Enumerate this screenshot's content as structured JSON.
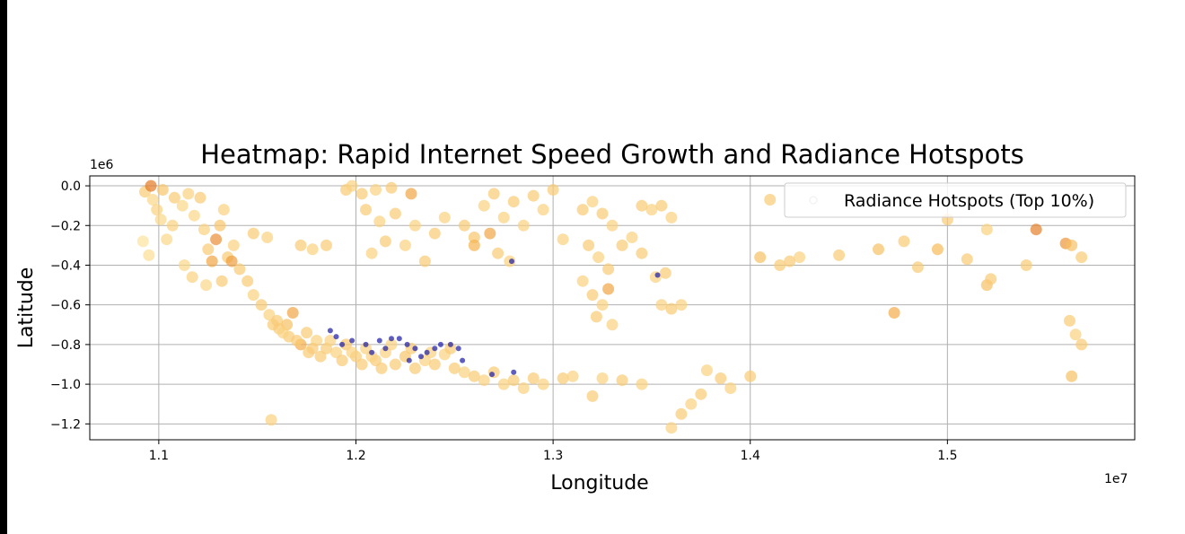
{
  "chart_data": {
    "type": "scatter",
    "title": "Heatmap: Rapid Internet Speed Growth and Radiance Hotspots",
    "xlabel": "Longitude",
    "ylabel": "Latitude",
    "x_offset_label": "1e7",
    "y_offset_label": "1e6",
    "xlim": [
      1.065,
      1.595
    ],
    "ylim": [
      -1.28,
      0.05
    ],
    "xticks": [
      1.1,
      1.2,
      1.3,
      1.4,
      1.5
    ],
    "xtick_labels": [
      "1.1",
      "1.2",
      "1.3",
      "1.4",
      "1.5"
    ],
    "yticks": [
      0.0,
      -0.2,
      -0.4,
      -0.6,
      -0.8,
      -1.0,
      -1.2
    ],
    "ytick_labels": [
      "0.0",
      "−0.2",
      "−0.4",
      "−0.6",
      "−0.8",
      "−1.0",
      "−1.2"
    ],
    "grid": true,
    "legend": {
      "position": "upper right",
      "entries": [
        "Radiance Hotspots (Top 10%)"
      ]
    },
    "colors": {
      "low": "#ffeeb0",
      "mid": "#f5b44e",
      "high": "#e06a1a",
      "hotspot": "#1a1aa6"
    },
    "series": [
      {
        "role": "speed-growth",
        "points": [
          [
            1.093,
            -0.03,
            0.3
          ],
          [
            1.097,
            -0.07,
            0.2
          ],
          [
            1.099,
            -0.12,
            0.25
          ],
          [
            1.102,
            -0.02,
            0.35
          ],
          [
            1.096,
            0.0,
            0.9
          ],
          [
            1.101,
            -0.17,
            0.2
          ],
          [
            1.104,
            -0.27,
            0.2
          ],
          [
            1.092,
            -0.28,
            0.1
          ],
          [
            1.095,
            -0.35,
            0.15
          ],
          [
            1.107,
            -0.2,
            0.25
          ],
          [
            1.108,
            -0.06,
            0.3
          ],
          [
            1.112,
            -0.1,
            0.2
          ],
          [
            1.115,
            -0.04,
            0.25
          ],
          [
            1.118,
            -0.15,
            0.2
          ],
          [
            1.121,
            -0.06,
            0.3
          ],
          [
            1.123,
            -0.22,
            0.25
          ],
          [
            1.125,
            -0.32,
            0.3
          ],
          [
            1.129,
            -0.27,
            0.75
          ],
          [
            1.131,
            -0.2,
            0.35
          ],
          [
            1.133,
            -0.12,
            0.25
          ],
          [
            1.127,
            -0.38,
            0.6
          ],
          [
            1.135,
            -0.36,
            0.3
          ],
          [
            1.138,
            -0.3,
            0.25
          ],
          [
            1.141,
            -0.42,
            0.3
          ],
          [
            1.113,
            -0.4,
            0.2
          ],
          [
            1.117,
            -0.46,
            0.25
          ],
          [
            1.124,
            -0.5,
            0.2
          ],
          [
            1.132,
            -0.48,
            0.3
          ],
          [
            1.137,
            -0.38,
            0.65
          ],
          [
            1.145,
            -0.48,
            0.3
          ],
          [
            1.148,
            -0.55,
            0.25
          ],
          [
            1.152,
            -0.6,
            0.3
          ],
          [
            1.156,
            -0.65,
            0.25
          ],
          [
            1.16,
            -0.68,
            0.3
          ],
          [
            1.165,
            -0.7,
            0.4
          ],
          [
            1.168,
            -0.64,
            0.6
          ],
          [
            1.161,
            -0.72,
            0.3
          ],
          [
            1.166,
            -0.76,
            0.3
          ],
          [
            1.172,
            -0.8,
            0.55
          ],
          [
            1.175,
            -0.74,
            0.3
          ],
          [
            1.18,
            -0.78,
            0.25
          ],
          [
            1.185,
            -0.82,
            0.3
          ],
          [
            1.19,
            -0.84,
            0.25
          ],
          [
            1.195,
            -0.8,
            0.35
          ],
          [
            1.2,
            -0.86,
            0.3
          ],
          [
            1.205,
            -0.82,
            0.25
          ],
          [
            1.21,
            -0.88,
            0.3
          ],
          [
            1.215,
            -0.84,
            0.25
          ],
          [
            1.22,
            -0.9,
            0.3
          ],
          [
            1.225,
            -0.86,
            0.35
          ],
          [
            1.23,
            -0.92,
            0.3
          ],
          [
            1.235,
            -0.88,
            0.25
          ],
          [
            1.24,
            -0.9,
            0.3
          ],
          [
            1.245,
            -0.85,
            0.25
          ],
          [
            1.25,
            -0.92,
            0.3
          ],
          [
            1.255,
            -0.94,
            0.25
          ],
          [
            1.26,
            -0.96,
            0.3
          ],
          [
            1.265,
            -0.98,
            0.25
          ],
          [
            1.27,
            -0.94,
            0.3
          ],
          [
            1.275,
            -1.0,
            0.25
          ],
          [
            1.28,
            -0.98,
            0.3
          ],
          [
            1.285,
            -1.02,
            0.25
          ],
          [
            1.29,
            -0.97,
            0.3
          ],
          [
            1.295,
            -1.0,
            0.25
          ],
          [
            1.178,
            -0.82,
            0.3
          ],
          [
            1.182,
            -0.86,
            0.3
          ],
          [
            1.187,
            -0.78,
            0.25
          ],
          [
            1.193,
            -0.88,
            0.3
          ],
          [
            1.198,
            -0.84,
            0.25
          ],
          [
            1.203,
            -0.9,
            0.3
          ],
          [
            1.208,
            -0.86,
            0.25
          ],
          [
            1.213,
            -0.92,
            0.3
          ],
          [
            1.218,
            -0.8,
            0.25
          ],
          [
            1.228,
            -0.82,
            0.3
          ],
          [
            1.238,
            -0.84,
            0.25
          ],
          [
            1.248,
            -0.82,
            0.3
          ],
          [
            1.158,
            -0.7,
            0.3
          ],
          [
            1.163,
            -0.74,
            0.25
          ],
          [
            1.17,
            -0.78,
            0.3
          ],
          [
            1.176,
            -0.84,
            0.3
          ],
          [
            1.195,
            -0.02,
            0.3
          ],
          [
            1.198,
            0.0,
            0.25
          ],
          [
            1.203,
            -0.04,
            0.3
          ],
          [
            1.21,
            -0.02,
            0.25
          ],
          [
            1.218,
            -0.01,
            0.3
          ],
          [
            1.228,
            -0.04,
            0.6
          ],
          [
            1.205,
            -0.12,
            0.3
          ],
          [
            1.212,
            -0.18,
            0.25
          ],
          [
            1.22,
            -0.14,
            0.3
          ],
          [
            1.23,
            -0.2,
            0.25
          ],
          [
            1.24,
            -0.24,
            0.3
          ],
          [
            1.245,
            -0.16,
            0.25
          ],
          [
            1.255,
            -0.2,
            0.3
          ],
          [
            1.26,
            -0.26,
            0.35
          ],
          [
            1.265,
            -0.1,
            0.25
          ],
          [
            1.27,
            -0.04,
            0.3
          ],
          [
            1.275,
            -0.16,
            0.25
          ],
          [
            1.28,
            -0.08,
            0.3
          ],
          [
            1.285,
            -0.2,
            0.25
          ],
          [
            1.29,
            -0.05,
            0.3
          ],
          [
            1.295,
            -0.12,
            0.25
          ],
          [
            1.3,
            -0.02,
            0.3
          ],
          [
            1.268,
            -0.24,
            0.6
          ],
          [
            1.26,
            -0.3,
            0.5
          ],
          [
            1.272,
            -0.34,
            0.3
          ],
          [
            1.278,
            -0.38,
            0.25
          ],
          [
            1.215,
            -0.28,
            0.3
          ],
          [
            1.225,
            -0.3,
            0.25
          ],
          [
            1.235,
            -0.38,
            0.3
          ],
          [
            1.208,
            -0.34,
            0.25
          ],
          [
            1.172,
            -0.3,
            0.3
          ],
          [
            1.178,
            -0.32,
            0.25
          ],
          [
            1.185,
            -0.3,
            0.3
          ],
          [
            1.155,
            -0.26,
            0.25
          ],
          [
            1.148,
            -0.24,
            0.3
          ],
          [
            1.157,
            -1.18,
            0.25
          ],
          [
            1.315,
            -0.12,
            0.3
          ],
          [
            1.32,
            -0.08,
            0.25
          ],
          [
            1.325,
            -0.14,
            0.3
          ],
          [
            1.33,
            -0.2,
            0.25
          ],
          [
            1.318,
            -0.3,
            0.3
          ],
          [
            1.323,
            -0.36,
            0.25
          ],
          [
            1.328,
            -0.42,
            0.3
          ],
          [
            1.315,
            -0.48,
            0.25
          ],
          [
            1.32,
            -0.55,
            0.3
          ],
          [
            1.325,
            -0.6,
            0.25
          ],
          [
            1.328,
            -0.52,
            0.6
          ],
          [
            1.322,
            -0.66,
            0.3
          ],
          [
            1.33,
            -0.7,
            0.25
          ],
          [
            1.335,
            -0.3,
            0.3
          ],
          [
            1.34,
            -0.26,
            0.25
          ],
          [
            1.345,
            -0.34,
            0.3
          ],
          [
            1.35,
            -0.12,
            0.25
          ],
          [
            1.355,
            -0.1,
            0.3
          ],
          [
            1.36,
            -0.16,
            0.25
          ],
          [
            1.345,
            -0.1,
            0.3
          ],
          [
            1.352,
            -0.46,
            0.25
          ],
          [
            1.357,
            -0.44,
            0.3
          ],
          [
            1.355,
            -0.6,
            0.25
          ],
          [
            1.36,
            -0.62,
            0.3
          ],
          [
            1.365,
            -0.6,
            0.25
          ],
          [
            1.305,
            -0.97,
            0.3
          ],
          [
            1.31,
            -0.96,
            0.25
          ],
          [
            1.32,
            -1.06,
            0.3
          ],
          [
            1.325,
            -0.97,
            0.25
          ],
          [
            1.335,
            -0.98,
            0.3
          ],
          [
            1.345,
            -1.0,
            0.25
          ],
          [
            1.36,
            -1.22,
            0.25
          ],
          [
            1.365,
            -1.15,
            0.3
          ],
          [
            1.37,
            -1.1,
            0.25
          ],
          [
            1.375,
            -1.05,
            0.3
          ],
          [
            1.378,
            -0.93,
            0.25
          ],
          [
            1.385,
            -0.97,
            0.3
          ],
          [
            1.39,
            -1.02,
            0.25
          ],
          [
            1.4,
            -0.96,
            0.3
          ],
          [
            1.305,
            -0.27,
            0.25
          ],
          [
            1.41,
            -0.07,
            0.3
          ],
          [
            1.405,
            -0.36,
            0.4
          ],
          [
            1.415,
            -0.4,
            0.3
          ],
          [
            1.42,
            -0.38,
            0.3
          ],
          [
            1.425,
            -0.36,
            0.25
          ],
          [
            1.445,
            -0.35,
            0.3
          ],
          [
            1.465,
            -0.32,
            0.4
          ],
          [
            1.473,
            -0.64,
            0.55
          ],
          [
            1.478,
            -0.28,
            0.3
          ],
          [
            1.485,
            -0.41,
            0.3
          ],
          [
            1.495,
            -0.32,
            0.45
          ],
          [
            1.51,
            -0.37,
            0.3
          ],
          [
            1.52,
            -0.5,
            0.4
          ],
          [
            1.522,
            -0.47,
            0.3
          ],
          [
            1.54,
            -0.4,
            0.3
          ],
          [
            1.545,
            -0.22,
            0.85
          ],
          [
            1.56,
            -0.29,
            0.7
          ],
          [
            1.563,
            -0.3,
            0.4
          ],
          [
            1.568,
            -0.36,
            0.3
          ],
          [
            1.562,
            -0.68,
            0.3
          ],
          [
            1.565,
            -0.75,
            0.25
          ],
          [
            1.568,
            -0.8,
            0.3
          ],
          [
            1.563,
            -0.96,
            0.4
          ],
          [
            1.5,
            -0.17,
            0.3
          ],
          [
            1.52,
            -0.22,
            0.25
          ]
        ]
      },
      {
        "role": "hotspots",
        "points": [
          [
            1.187,
            -0.73
          ],
          [
            1.19,
            -0.76
          ],
          [
            1.193,
            -0.8
          ],
          [
            1.198,
            -0.78
          ],
          [
            1.205,
            -0.8
          ],
          [
            1.212,
            -0.78
          ],
          [
            1.218,
            -0.77
          ],
          [
            1.222,
            -0.77
          ],
          [
            1.226,
            -0.8
          ],
          [
            1.23,
            -0.82
          ],
          [
            1.233,
            -0.86
          ],
          [
            1.236,
            -0.84
          ],
          [
            1.24,
            -0.82
          ],
          [
            1.243,
            -0.8
          ],
          [
            1.248,
            -0.8
          ],
          [
            1.252,
            -0.82
          ],
          [
            1.254,
            -0.88
          ],
          [
            1.227,
            -0.88
          ],
          [
            1.215,
            -0.82
          ],
          [
            1.208,
            -0.84
          ],
          [
            1.269,
            -0.95
          ],
          [
            1.279,
            -0.38
          ],
          [
            1.353,
            -0.45
          ],
          [
            1.28,
            -0.94
          ]
        ]
      }
    ]
  }
}
